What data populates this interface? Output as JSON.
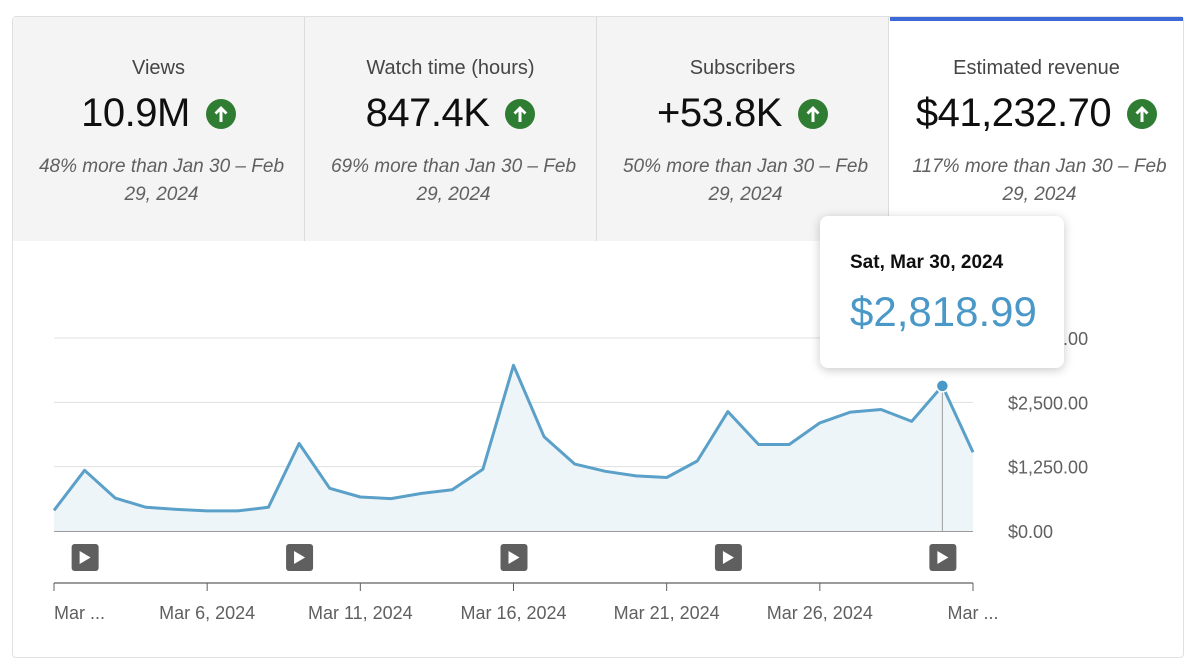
{
  "tabs": [
    {
      "title": "Views",
      "value": "10.9M",
      "compare": "48% more than Jan 30 – Feb 29, 2024",
      "trend_icon": "arrow-up-circle-icon"
    },
    {
      "title": "Watch time (hours)",
      "value": "847.4K",
      "compare": "69% more than Jan 30 – Feb 29, 2024",
      "trend_icon": "arrow-up-circle-icon"
    },
    {
      "title": "Subscribers",
      "value": "+53.8K",
      "compare": "50% more than Jan 30 – Feb 29, 2024",
      "trend_icon": "arrow-up-circle-icon"
    },
    {
      "title": "Estimated revenue",
      "value": "$41,232.70",
      "compare": "117% more than Jan 30 – Feb 29, 2024",
      "trend_icon": "arrow-up-circle-icon",
      "active": true
    }
  ],
  "tooltip": {
    "date": "Sat, Mar 30, 2024",
    "value": "$2,818.99"
  },
  "colors": {
    "accent": "#3b6ad8",
    "up": "#2e7d32",
    "line": "#5aa0c8",
    "fill": "#eef5f9"
  },
  "chart_data": {
    "type": "area",
    "ylabel_unit": "$",
    "y_ticks": [
      "$0.00",
      "$1,250.00",
      "$2,500.00",
      "$3,750.00"
    ],
    "ylim": [
      0,
      3750
    ],
    "x_ticks": [
      "Mar ...",
      "Mar 6, 2024",
      "Mar 11, 2024",
      "Mar 16, 2024",
      "Mar 21, 2024",
      "Mar 26, 2024",
      "Mar ..."
    ],
    "x": [
      "2024-03-01",
      "2024-03-02",
      "2024-03-03",
      "2024-03-04",
      "2024-03-05",
      "2024-03-06",
      "2024-03-07",
      "2024-03-08",
      "2024-03-09",
      "2024-03-10",
      "2024-03-11",
      "2024-03-12",
      "2024-03-13",
      "2024-03-14",
      "2024-03-15",
      "2024-03-16",
      "2024-03-17",
      "2024-03-18",
      "2024-03-19",
      "2024-03-20",
      "2024-03-21",
      "2024-03-22",
      "2024-03-23",
      "2024-03-24",
      "2024-03-25",
      "2024-03-26",
      "2024-03-27",
      "2024-03-28",
      "2024-03-29",
      "2024-03-30",
      "2024-03-31"
    ],
    "series": [
      {
        "values": [
          400,
          1180,
          640,
          460,
          420,
          390,
          390,
          460,
          1700,
          830,
          660,
          630,
          730,
          800,
          1200,
          3220,
          1830,
          1300,
          1160,
          1070,
          1040,
          1360,
          2320,
          1680,
          1680,
          2100,
          2310,
          2360,
          2130,
          2819,
          1530
        ]
      }
    ],
    "highlight_index": 29,
    "video_markers": [
      "2024-03-02",
      "2024-03-09",
      "2024-03-16",
      "2024-03-23",
      "2024-03-30"
    ],
    "grid": true,
    "legend": "none"
  }
}
